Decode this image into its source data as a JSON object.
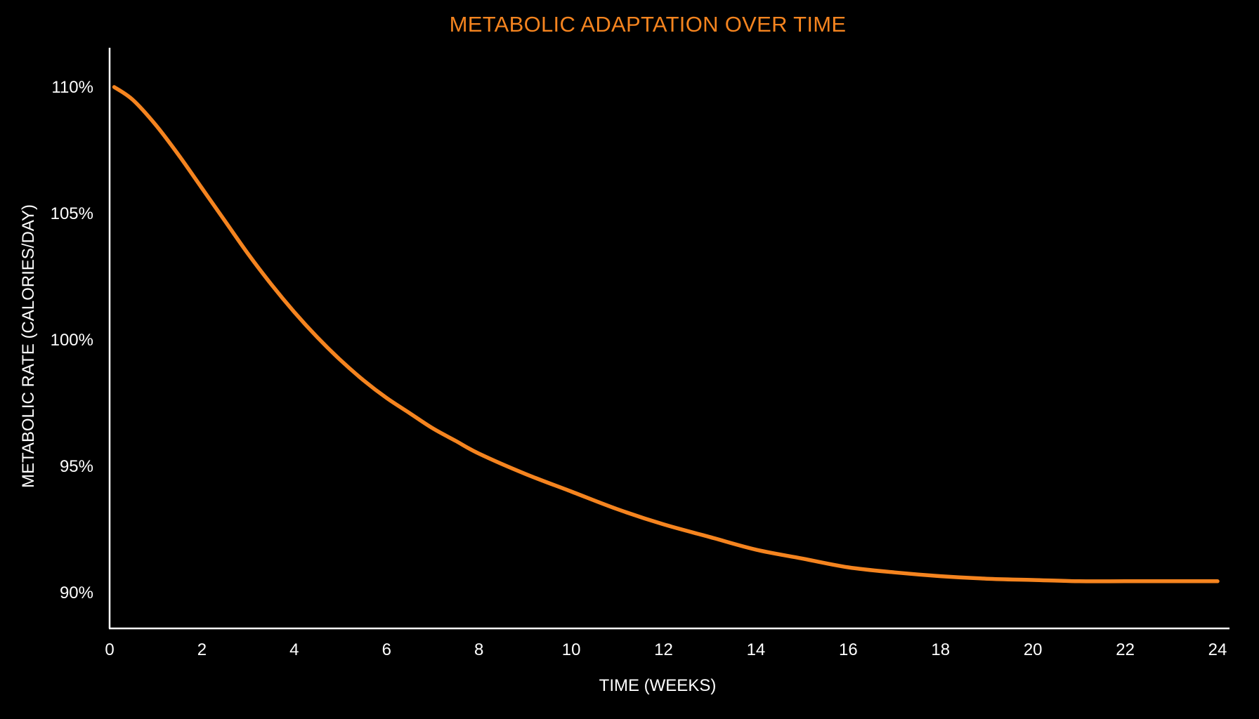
{
  "chart_data": {
    "type": "line",
    "title": "METABOLIC ADAPTATION OVER TIME",
    "xlabel": "TIME (WEEKS)",
    "ylabel": "METABOLIC RATE (CALORIES/DAY)",
    "xlim": [
      0,
      24.2
    ],
    "ylim": [
      88.6,
      111.5
    ],
    "x_ticks": [
      0,
      2,
      4,
      6,
      8,
      10,
      12,
      14,
      16,
      18,
      20,
      22,
      24
    ],
    "x_tick_labels": [
      "0",
      "2",
      "4",
      "6",
      "8",
      "10",
      "12",
      "14",
      "16",
      "18",
      "20",
      "22",
      "24"
    ],
    "y_ticks": [
      90,
      95,
      100,
      105,
      110
    ],
    "y_tick_labels": [
      "90%",
      "95%",
      "100%",
      "105%",
      "110%"
    ],
    "grid": false,
    "legend": "none",
    "colors": {
      "background": "#000000",
      "title": "#f5841f",
      "series": "#f5841f",
      "axes": "#ffffff",
      "text": "#ffffff"
    },
    "series": [
      {
        "x": [
          0.1,
          0.5,
          1,
          1.5,
          2,
          2.5,
          3,
          3.5,
          4,
          4.5,
          5,
          5.5,
          6,
          6.5,
          7,
          7.5,
          8,
          9,
          10,
          11,
          12,
          13,
          14,
          15,
          16,
          17,
          18,
          19,
          20,
          21,
          22,
          23,
          24
        ],
        "values": [
          110.0,
          109.5,
          108.5,
          107.3,
          106.0,
          104.7,
          103.4,
          102.2,
          101.1,
          100.1,
          99.2,
          98.4,
          97.7,
          97.1,
          96.5,
          96.0,
          95.5,
          94.7,
          94.0,
          93.3,
          92.7,
          92.2,
          91.7,
          91.35,
          91.0,
          90.8,
          90.65,
          90.55,
          90.5,
          90.45,
          90.45,
          90.45,
          90.45
        ]
      }
    ]
  }
}
